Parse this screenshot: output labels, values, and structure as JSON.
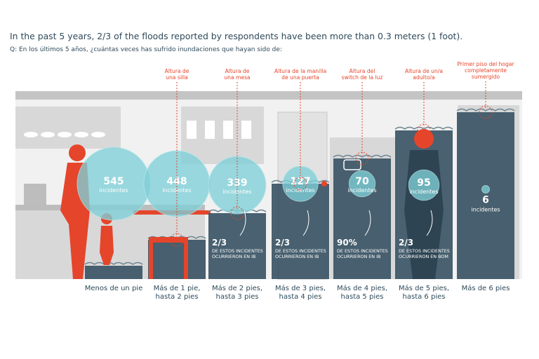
{
  "title": "In the past 5 years, 2/3 of the floods reported by respondents have been more than 0.3 meters (1 foot).",
  "question": "Q: En los últimos 5 años, ¿cuántas veces has sufrido inundaciones que hayan sido de:",
  "colors": {
    "water": "#3b5565",
    "water_line": "#6e8694",
    "bubble": "#7fd0d8",
    "accent": "#e5452b",
    "kitchen": "#d8d8d8",
    "kitchen_dark": "#c4c4c4",
    "text": "#2f4a5a"
  },
  "chart_data": {
    "type": "bubble",
    "title": "In the past 5 years, 2/3 of the floods reported by respondents have been more than 0.3 meters (1 foot).",
    "subtitle": "Q: En los últimos 5 años, ¿cuántas veces has sufrido inundaciones que hayan sido de:",
    "value_unit": "incidentes",
    "categories": [
      "Menos de un pie",
      "Más de 1 pie,\nhasta 2 pies",
      "Más de 2 pies,\nhasta 3 pies",
      "Más de 3 pies,\nhasta 4 pies",
      "Más de 4 pies,\nhasta 5 pies",
      "Más de 5 pies,\nhasta 6 pies",
      "Más de 6 pies"
    ],
    "values": [
      545,
      448,
      339,
      127,
      70,
      95,
      6
    ],
    "water_level_feet": [
      1,
      2,
      3,
      4,
      5,
      6,
      7
    ],
    "reference_labels": [
      "",
      "Altura de\nuna silla",
      "Altura de\nuna mesa",
      "Altura de la manilla\nde una puerta",
      "Altura del\nswitch de la luz",
      "Altura de un/a\nadulto/a",
      "Primer piso del hogar\ncompletamente\nsumergido"
    ],
    "notes": [
      null,
      null,
      {
        "share": "2/3",
        "text": "DE ESTOS INCIDENTES\nOCURRIERON EN IB"
      },
      {
        "share": "2/3",
        "text": "DE ESTOS INCIDENTES\nOCURRIERON EN IB"
      },
      {
        "share": "90%",
        "text": "DE ESTOS INCIDENTES\nOCURRIERON EN IB"
      },
      {
        "share": "2/3",
        "text": "DE ESTOS INCIDENTES\nOCURRIERON EN BOM"
      },
      null
    ]
  }
}
